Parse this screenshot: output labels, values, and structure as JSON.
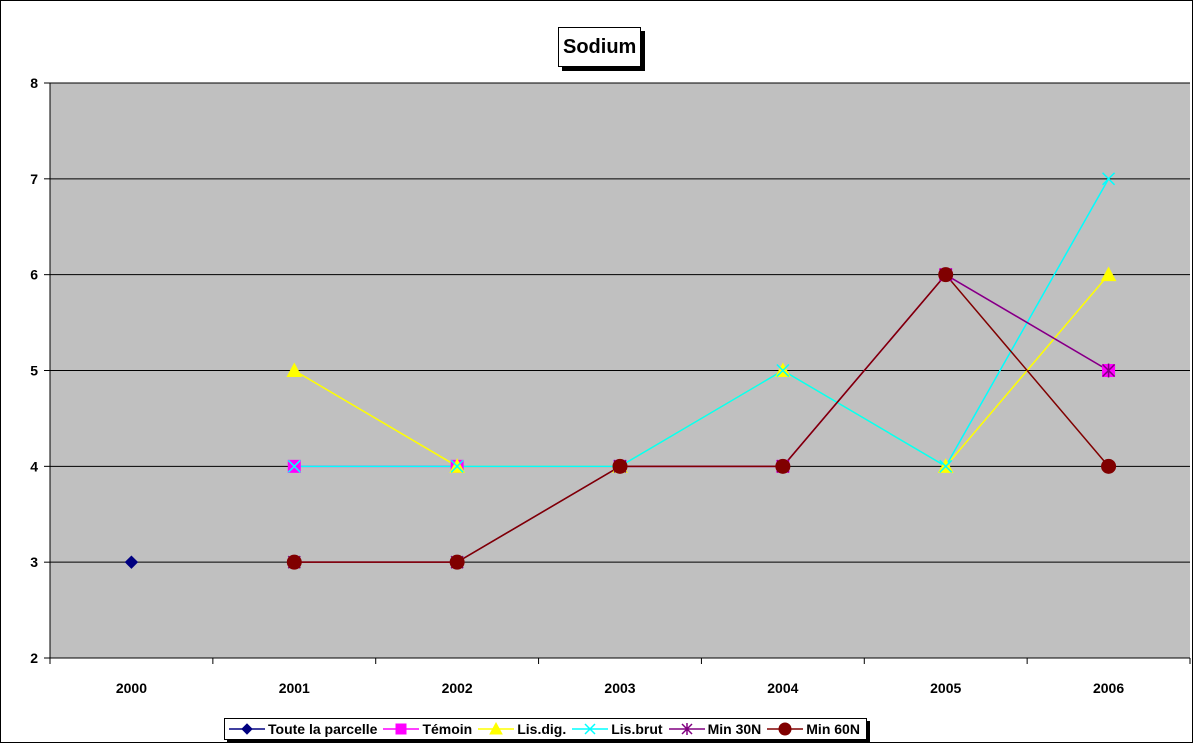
{
  "chart_data": {
    "type": "line",
    "title": "Sodium",
    "xlabel": "",
    "ylabel": "",
    "categories": [
      "2000",
      "2001",
      "2002",
      "2003",
      "2004",
      "2005",
      "2006"
    ],
    "ylim": [
      2,
      8
    ],
    "yticks": [
      "2",
      "3",
      "4",
      "5",
      "6",
      "7",
      "8"
    ],
    "grid": true,
    "plot_background": "#C0C0C0",
    "legend_position": "bottom",
    "series": [
      {
        "name": "Toute la parcelle",
        "color": "#000080",
        "marker": "diamond",
        "values": [
          3,
          null,
          null,
          null,
          null,
          null,
          null
        ]
      },
      {
        "name": "Témoin",
        "color": "#FF00FF",
        "marker": "square",
        "values": [
          null,
          4,
          4,
          4,
          4,
          6,
          5
        ]
      },
      {
        "name": "Lis.dig.",
        "color": "#FFFF00",
        "marker": "triangle",
        "values": [
          null,
          5,
          4,
          4,
          5,
          4,
          6
        ]
      },
      {
        "name": "Lis.brut",
        "color": "#00FFFF",
        "marker": "x",
        "values": [
          null,
          4,
          4,
          4,
          5,
          4,
          7
        ]
      },
      {
        "name": "Min 30N",
        "color": "#800080",
        "marker": "star",
        "values": [
          null,
          3,
          3,
          4,
          4,
          6,
          5
        ]
      },
      {
        "name": "Min 60N",
        "color": "#800000",
        "marker": "circle",
        "values": [
          null,
          3,
          3,
          4,
          4,
          6,
          4
        ]
      }
    ]
  }
}
